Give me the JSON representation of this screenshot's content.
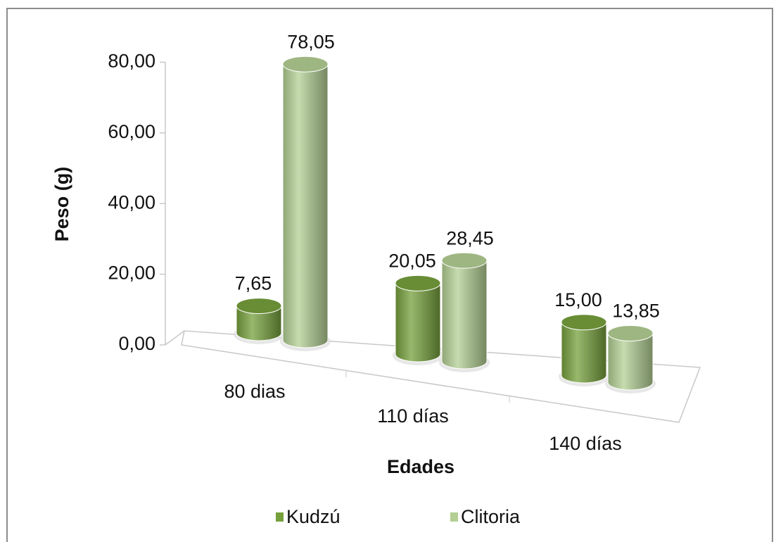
{
  "chart_data": {
    "type": "bar3d",
    "x_label": "Edades",
    "y_label": "Peso (g)",
    "categories": [
      "80 dias",
      "110 días",
      "140 días"
    ],
    "series": [
      {
        "name": "Kudzú",
        "color": "#76a03c",
        "values": [
          7.65,
          20.05,
          15.0
        ],
        "value_labels": [
          "7,65",
          "20,05",
          "15,00"
        ]
      },
      {
        "name": "Clitoria",
        "color": "#b3cf93",
        "values": [
          78.05,
          28.45,
          13.85
        ],
        "value_labels": [
          "78,05",
          "28,45",
          "13,85"
        ]
      }
    ],
    "ylim": [
      0,
      80
    ],
    "yticks": [
      {
        "value": 0,
        "label": "0,00"
      },
      {
        "value": 20,
        "label": "20,00"
      },
      {
        "value": 40,
        "label": "40,00"
      },
      {
        "value": 60,
        "label": "60,00"
      },
      {
        "value": 80,
        "label": "80,00"
      }
    ],
    "legend": "bottom"
  }
}
